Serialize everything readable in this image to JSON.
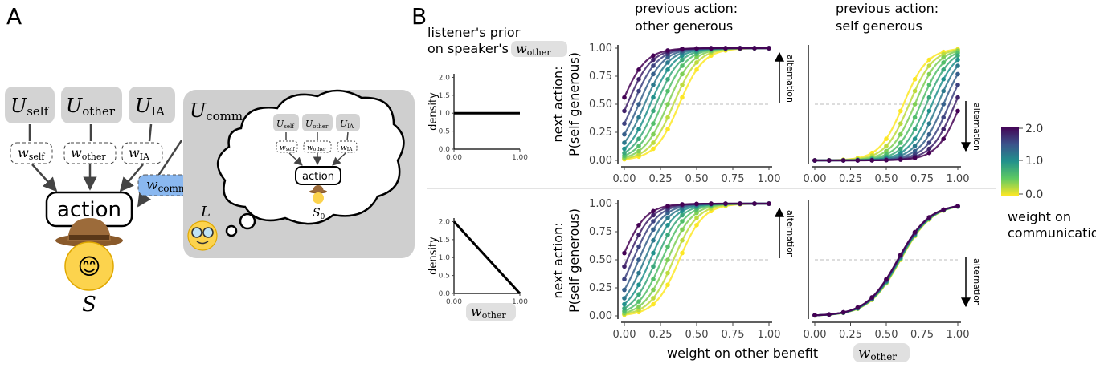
{
  "panel_a": {
    "letter": "A",
    "utilities": [
      {
        "base": "U",
        "sub": "self"
      },
      {
        "base": "U",
        "sub": "other"
      },
      {
        "base": "U",
        "sub": "IA"
      }
    ],
    "weights": [
      {
        "base": "w",
        "sub": "self"
      },
      {
        "base": "w",
        "sub": "other"
      },
      {
        "base": "w",
        "sub": "IA"
      }
    ],
    "comm_utility": {
      "base": "U",
      "sub": "comm"
    },
    "comm_weight": {
      "base": "w",
      "sub": "comm"
    },
    "action_label": "action",
    "speaker_label": "S",
    "listener_label": "L",
    "inner_speaker": {
      "base": "S",
      "sub": "0"
    },
    "speaker_emoji": "😊",
    "listener_emoji": "🤓",
    "colors": {
      "comm_bg": "#cfcfcf",
      "weight_comm": "#8ab8f0",
      "util_bg": "#d3d3d3"
    }
  },
  "panel_b": {
    "letter": "B",
    "prior_title_line1": "listener's prior",
    "prior_title_line2": "on speaker's",
    "prior_title_symbol": {
      "base": "w",
      "sub": "other"
    },
    "col_title_1": [
      "previous action:",
      "other generous"
    ],
    "col_title_2": [
      "previous action:",
      "self generous"
    ],
    "ylabel_line1": "next action:",
    "ylabel_line2": "P(self generous)",
    "xlabel": "weight on other benefit",
    "xlabel_symbol": {
      "base": "w",
      "sub": "other"
    },
    "density_label": "density",
    "prior_xlabel_symbol": {
      "base": "w",
      "sub": "other"
    },
    "alternation_label": "alternation",
    "colorbar": {
      "title_line1": "weight on",
      "title_line2": "communication",
      "ticks": [
        "2.0",
        "1.0",
        "0.0"
      ]
    }
  },
  "chart_data": [
    {
      "type": "line",
      "title": "",
      "ylabel": "density",
      "x": [
        0,
        1
      ],
      "y": [
        1,
        1
      ],
      "xticks": [
        "0.00",
        "1.00"
      ],
      "yticks": [
        "0.0",
        "0.5",
        "1.0",
        "1.5",
        "2.0"
      ],
      "ylim": [
        0,
        2.1
      ]
    },
    {
      "type": "line",
      "title": "",
      "ylabel": "density",
      "x": [
        0,
        1
      ],
      "y": [
        2,
        0
      ],
      "xticks": [
        "0.00",
        "1.00"
      ],
      "yticks": [
        "0.0",
        "0.5",
        "1.0",
        "1.5",
        "2.0"
      ],
      "ylim": [
        0,
        2.1
      ]
    },
    {
      "type": "line",
      "row": "top",
      "column": "previous action: other generous",
      "x": [
        0,
        0.1,
        0.2,
        0.3,
        0.4,
        0.5,
        0.6,
        0.7,
        0.8,
        0.9,
        1.0
      ],
      "weights": [
        0.0,
        0.2,
        0.4,
        0.6,
        0.8,
        1.0,
        1.2,
        1.4,
        1.6,
        1.8,
        2.0
      ],
      "center_weight_0": 0.38,
      "center_slope": 0.2,
      "slope": 12,
      "direction": "increasing",
      "hline": 0.5,
      "alternation_arrow": "up",
      "ylim": [
        0,
        1
      ],
      "xticks": [
        "0.00",
        "0.25",
        "0.50",
        "0.75",
        "1.00"
      ],
      "yticks": [
        "0.00",
        "0.25",
        "0.50",
        "0.75",
        "1.00"
      ]
    },
    {
      "type": "line",
      "row": "top",
      "column": "previous action: self generous",
      "x": [
        0,
        0.1,
        0.2,
        0.3,
        0.4,
        0.5,
        0.6,
        0.7,
        0.8,
        0.9,
        1.0
      ],
      "weights": [
        0.0,
        0.2,
        0.4,
        0.6,
        0.8,
        1.0,
        1.2,
        1.4,
        1.6,
        1.8,
        2.0
      ],
      "center_weight_0": 0.62,
      "center_slope": -0.2,
      "slope": 12,
      "direction": "increasing",
      "hline": 0.5,
      "alternation_arrow": "down",
      "ylim": [
        0,
        1
      ],
      "xticks": [
        "0.00",
        "0.25",
        "0.50",
        "0.75",
        "1.00"
      ],
      "yticks": []
    },
    {
      "type": "line",
      "row": "bottom",
      "column": "previous action: other generous",
      "x": [
        0,
        0.1,
        0.2,
        0.3,
        0.4,
        0.5,
        0.6,
        0.7,
        0.8,
        0.9,
        1.0
      ],
      "weights": [
        0.0,
        0.2,
        0.4,
        0.6,
        0.8,
        1.0,
        1.2,
        1.4,
        1.6,
        1.8,
        2.0
      ],
      "center_weight_0": 0.38,
      "center_slope": 0.2,
      "slope": 12,
      "direction": "increasing",
      "hline": 0.5,
      "alternation_arrow": "up",
      "ylim": [
        0,
        1
      ],
      "xticks": [
        "0.00",
        "0.25",
        "0.50",
        "0.75",
        "1.00"
      ],
      "yticks": [
        "0.00",
        "0.25",
        "0.50",
        "0.75",
        "1.00"
      ]
    },
    {
      "type": "line",
      "row": "bottom",
      "column": "previous action: self generous",
      "x": [
        0,
        0.1,
        0.2,
        0.3,
        0.4,
        0.5,
        0.6,
        0.7,
        0.8,
        0.9,
        1.0
      ],
      "weights": [
        0.0,
        0.2,
        0.4,
        0.6,
        0.8,
        1.0,
        1.2,
        1.4,
        1.6,
        1.8,
        2.0
      ],
      "center_weight_0": 0.6,
      "center_slope": 0.01,
      "slope": 9,
      "direction": "increasing",
      "hline": 0.5,
      "alternation_arrow": "down",
      "ylim": [
        0,
        1
      ],
      "xticks": [
        "0.00",
        "0.25",
        "0.50",
        "0.75",
        "1.00"
      ],
      "yticks": []
    }
  ]
}
